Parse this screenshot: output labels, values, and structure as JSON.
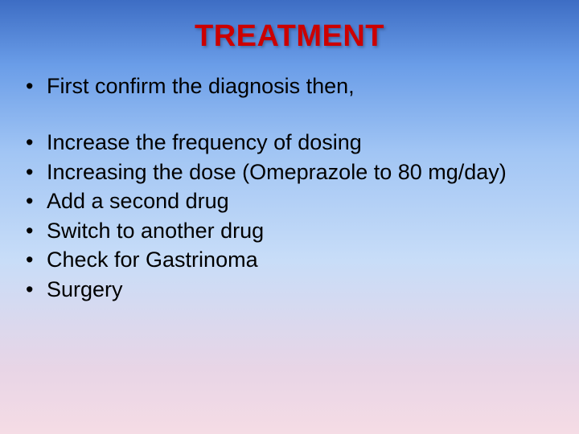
{
  "slide": {
    "title": "TREATMENT",
    "title_color": "#cc0000",
    "title_fontsize": 38,
    "body_fontsize": 27,
    "body_color": "#000000",
    "background_gradient": [
      "#3d6dc4",
      "#6a9de8",
      "#a1c5f4",
      "#c8ddf8",
      "#e8d5e6",
      "#f5dce5"
    ],
    "bullet_groups": [
      {
        "items": [
          "First confirm the diagnosis then,"
        ]
      },
      {
        "items": [
          "Increase the frequency of dosing",
          "Increasing the dose (Omeprazole to 80 mg/day)",
          "Add a second drug",
          "Switch to another drug",
          "Check for Gastrinoma",
          "Surgery"
        ]
      }
    ]
  }
}
